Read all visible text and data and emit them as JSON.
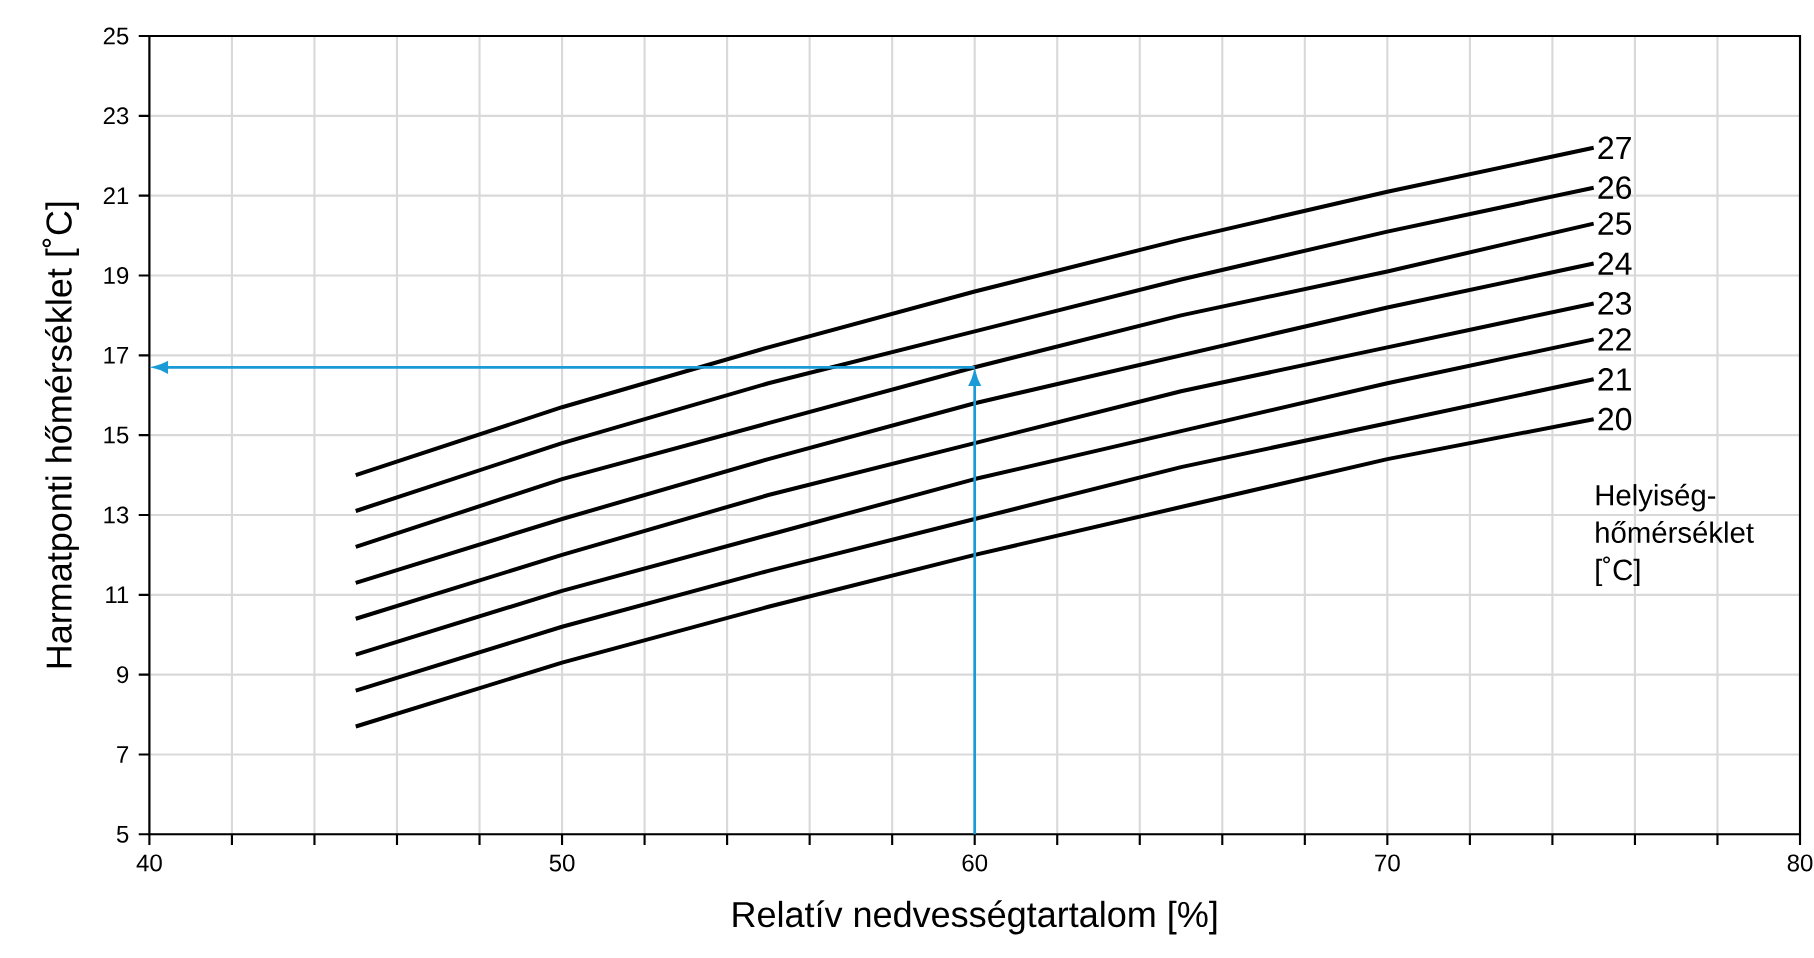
{
  "chart_data": {
    "type": "line",
    "xlabel": "Relatív nedvességtartalom [%]",
    "ylabel": "Harmatponti hőmérséklet [˚C]",
    "legend_title": "Helyiség-hőmérséklet [˚C]",
    "x": [
      45,
      50,
      55,
      60,
      65,
      70,
      75
    ],
    "series": [
      {
        "name": "20",
        "color": "#000000",
        "values": [
          7.7,
          9.3,
          10.7,
          12.0,
          13.2,
          14.4,
          15.4
        ]
      },
      {
        "name": "21",
        "color": "#000000",
        "values": [
          8.6,
          10.2,
          11.6,
          12.9,
          14.2,
          15.3,
          16.4
        ]
      },
      {
        "name": "22",
        "color": "#000000",
        "values": [
          9.5,
          11.1,
          12.5,
          13.9,
          15.1,
          16.3,
          17.4
        ]
      },
      {
        "name": "23",
        "color": "#000000",
        "values": [
          10.4,
          12.0,
          13.5,
          14.8,
          16.1,
          17.2,
          18.3
        ]
      },
      {
        "name": "24",
        "color": "#000000",
        "values": [
          11.3,
          12.9,
          14.4,
          15.8,
          17.0,
          18.2,
          19.3
        ]
      },
      {
        "name": "25",
        "color": "#000000",
        "values": [
          12.2,
          13.9,
          15.3,
          16.7,
          18.0,
          19.1,
          20.3
        ]
      },
      {
        "name": "26",
        "color": "#000000",
        "values": [
          13.1,
          14.8,
          16.3,
          17.6,
          18.9,
          20.1,
          21.2
        ]
      },
      {
        "name": "27",
        "color": "#000000",
        "values": [
          14.0,
          15.7,
          17.2,
          18.6,
          19.9,
          21.1,
          22.2
        ]
      }
    ],
    "xlim": [
      40,
      80
    ],
    "xticks": [
      40,
      {
        "value": 42,
        "label": null
      },
      {
        "value": 44,
        "label": null
      },
      {
        "value": 46,
        "label": null
      },
      {
        "value": 48,
        "label": null
      },
      50,
      {
        "value": 52,
        "label": null
      },
      {
        "value": 54,
        "label": null
      },
      {
        "value": 56,
        "label": null
      },
      {
        "value": 58,
        "label": null
      },
      60,
      {
        "value": 62,
        "label": null
      },
      {
        "value": 64,
        "label": null
      },
      {
        "value": 66,
        "label": null
      },
      {
        "value": 68,
        "label": null
      },
      70,
      {
        "value": 72,
        "label": null
      },
      {
        "value": 74,
        "label": null
      },
      {
        "value": 76,
        "label": null
      },
      {
        "value": 78,
        "label": null
      },
      80
    ],
    "ylim": [
      5,
      25
    ],
    "yticks": [
      5,
      7,
      9,
      11,
      13,
      15,
      17,
      19,
      21,
      23,
      25
    ],
    "grid": true,
    "legend": false,
    "marker": "none",
    "line_style": "solid",
    "ref_lines": [
      {
        "axis": "x",
        "value": 60,
        "color": "#1a9ad6"
      },
      {
        "axis": "y",
        "value": 16.7,
        "color": "#1a9ad6"
      }
    ]
  }
}
